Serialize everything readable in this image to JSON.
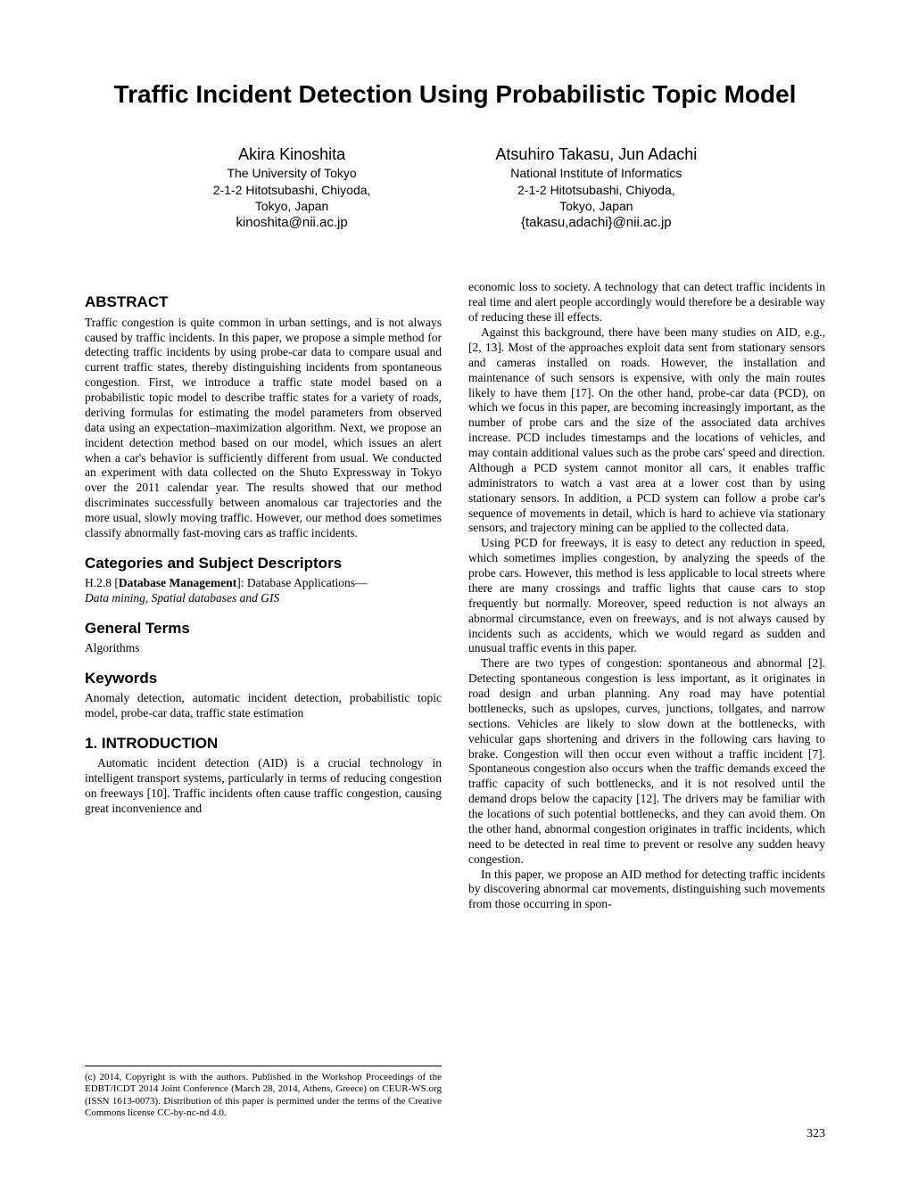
{
  "title": "Traffic Incident Detection Using Probabilistic Topic Model",
  "authors": [
    {
      "name": "Akira Kinoshita",
      "affiliation1": "The University of Tokyo",
      "affiliation2": "2-1-2 Hitotsubashi, Chiyoda,",
      "affiliation3": "Tokyo, Japan",
      "email": "kinoshita@nii.ac.jp"
    },
    {
      "name": "Atsuhiro Takasu, Jun Adachi",
      "affiliation1": "National Institute of Informatics",
      "affiliation2": "2-1-2 Hitotsubashi, Chiyoda,",
      "affiliation3": "Tokyo, Japan",
      "email": "{takasu,adachi}@nii.ac.jp"
    }
  ],
  "abstract_heading": "ABSTRACT",
  "abstract_text": "Traffic congestion is quite common in urban settings, and is not always caused by traffic incidents. In this paper, we propose a simple method for detecting traffic incidents by using probe-car data to compare usual and current traffic states, thereby distinguishing incidents from spontaneous congestion. First, we introduce a traffic state model based on a probabilistic topic model to describe traffic states for a variety of roads, deriving formulas for estimating the model parameters from observed data using an expectation–maximization algorithm. Next, we propose an incident detection method based on our model, which issues an alert when a car's behavior is sufficiently different from usual. We conducted an experiment with data collected on the Shuto Expressway in Tokyo over the 2011 calendar year. The results showed that our method discriminates successfully between anomalous car trajectories and the more usual, slowly moving traffic. However, our method does sometimes classify abnormally fast-moving cars as traffic incidents.",
  "categories_heading": "Categories and Subject Descriptors",
  "categories_prefix": "H.2.8 [",
  "categories_bold": "Database Management",
  "categories_suffix": "]: Database Applications—",
  "categories_italic": "Data mining, Spatial databases and GIS",
  "general_terms_heading": "General Terms",
  "general_terms_text": "Algorithms",
  "keywords_heading": "Keywords",
  "keywords_text": "Anomaly detection, automatic incident detection, probabilistic topic model, probe-car data, traffic state estimation",
  "intro_heading": "1.   INTRODUCTION",
  "intro_p1": "Automatic incident detection (AID) is a crucial technology in intelligent transport systems, particularly in terms of reducing congestion on freeways [10]. Traffic incidents often cause traffic congestion, causing great inconvenience and",
  "col2_p1": "economic loss to society. A technology that can detect traffic incidents in real time and alert people accordingly would therefore be a desirable way of reducing these ill effects.",
  "col2_p2": "Against this background, there have been many studies on AID, e.g., [2, 13]. Most of the approaches exploit data sent from stationary sensors and cameras installed on roads. However, the installation and maintenance of such sensors is expensive, with only the main routes likely to have them [17]. On the other hand, probe-car data (PCD), on which we focus in this paper, are becoming increasingly important, as the number of probe cars and the size of the associated data archives increase. PCD includes timestamps and the locations of vehicles, and may contain additional values such as the probe cars' speed and direction. Although a PCD system cannot monitor all cars, it enables traffic administrators to watch a vast area at a lower cost than by using stationary sensors. In addition, a PCD system can follow a probe car's sequence of movements in detail, which is hard to achieve via stationary sensors, and trajectory mining can be applied to the collected data.",
  "col2_p3": "Using PCD for freeways, it is easy to detect any reduction in speed, which sometimes implies congestion, by analyzing the speeds of the probe cars. However, this method is less applicable to local streets where there are many crossings and traffic lights that cause cars to stop frequently but normally. Moreover, speed reduction is not always an abnormal circumstance, even on freeways, and is not always caused by incidents such as accidents, which we would regard as sudden and unusual traffic events in this paper.",
  "col2_p4": "There are two types of congestion: spontaneous and abnormal [2]. Detecting spontaneous congestion is less important, as it originates in road design and urban planning. Any road may have potential bottlenecks, such as upslopes, curves, junctions, tollgates, and narrow sections. Vehicles are likely to slow down at the bottlenecks, with vehicular gaps shortening and drivers in the following cars having to brake. Congestion will then occur even without a traffic incident [7]. Spontaneous congestion also occurs when the traffic demands exceed the traffic capacity of such bottlenecks, and it is not resolved until the demand drops below the capacity [12]. The drivers may be familiar with the locations of such potential bottlenecks, and they can avoid them. On the other hand, abnormal congestion originates in traffic incidents, which need to be detected in real time to prevent or resolve any sudden heavy congestion.",
  "col2_p5": "In this paper, we propose an AID method for detecting traffic incidents by discovering abnormal car movements, distinguishing such movements from those occurring in spon-",
  "copyright_text": "(c) 2014, Copyright is with the authors. Published in the Workshop Proceedings of the EDBT/ICDT 2014 Joint Conference (March 28, 2014, Athens, Greece) on CEUR-WS.org (ISSN 1613-0073). Distribution of this paper is permitted under the terms of the Creative Commons license CC-by-nc-nd 4.0.",
  "page_number": "323"
}
